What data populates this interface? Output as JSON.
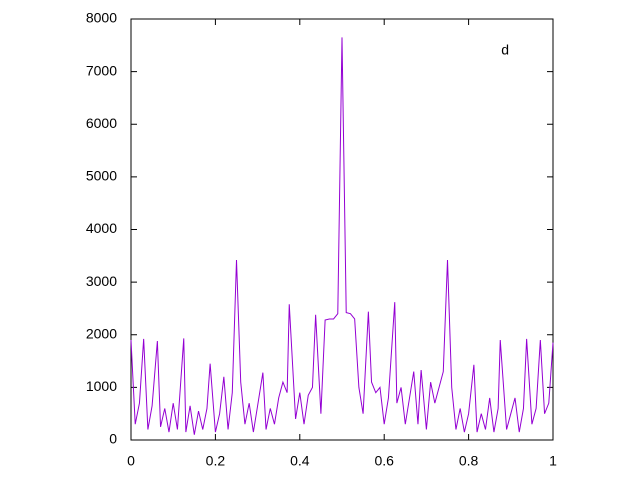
{
  "chart_data": {
    "type": "line",
    "x": [
      0,
      0.01,
      0.02,
      0.03,
      0.04,
      0.05,
      0.0625,
      0.07,
      0.08,
      0.09,
      0.1,
      0.11,
      0.125,
      0.13,
      0.14,
      0.15,
      0.16,
      0.17,
      0.18,
      0.1875,
      0.2,
      0.21,
      0.22,
      0.23,
      0.24,
      0.25,
      0.26,
      0.27,
      0.28,
      0.29,
      0.3,
      0.3125,
      0.32,
      0.33,
      0.34,
      0.35,
      0.36,
      0.37,
      0.375,
      0.39,
      0.4,
      0.41,
      0.42,
      0.43,
      0.4375,
      0.45,
      0.46,
      0.47,
      0.48,
      0.49,
      0.5,
      0.51,
      0.52,
      0.53,
      0.54,
      0.55,
      0.5625,
      0.57,
      0.58,
      0.59,
      0.6,
      0.61,
      0.625,
      0.63,
      0.64,
      0.65,
      0.66,
      0.67,
      0.68,
      0.6875,
      0.7,
      0.71,
      0.72,
      0.73,
      0.74,
      0.75,
      0.76,
      0.77,
      0.78,
      0.79,
      0.8,
      0.8125,
      0.82,
      0.83,
      0.84,
      0.85,
      0.86,
      0.87,
      0.875,
      0.89,
      0.9,
      0.91,
      0.92,
      0.93,
      0.9375,
      0.95,
      0.96,
      0.97,
      0.98,
      0.99,
      1
    ],
    "series": [
      {
        "name": "d",
        "color": "#9400d3",
        "values": [
          1900,
          300,
          700,
          1920,
          200,
          650,
          1880,
          250,
          600,
          150,
          700,
          200,
          1930,
          150,
          650,
          100,
          550,
          200,
          600,
          1450,
          150,
          500,
          1200,
          200,
          900,
          3420,
          1100,
          300,
          700,
          150,
          650,
          1280,
          200,
          600,
          300,
          800,
          1100,
          900,
          2580,
          400,
          900,
          300,
          850,
          1000,
          2380,
          500,
          2280,
          2300,
          2300,
          2400,
          7650,
          2420,
          2400,
          2300,
          1000,
          500,
          2440,
          1100,
          900,
          1000,
          300,
          800,
          2620,
          700,
          1000,
          300,
          800,
          1300,
          300,
          1330,
          200,
          1100,
          700,
          1000,
          1300,
          3420,
          1000,
          200,
          600,
          150,
          500,
          1430,
          150,
          500,
          200,
          800,
          150,
          600,
          1900,
          200,
          500,
          800,
          150,
          600,
          1920,
          300,
          600,
          1900,
          500,
          700,
          1850
        ]
      }
    ],
    "xlim": [
      0,
      1
    ],
    "xticks": [
      0,
      0.2,
      0.4,
      0.6,
      0.8,
      1
    ],
    "ylim": [
      0,
      8000
    ],
    "yticks": [
      0,
      1000,
      2000,
      3000,
      4000,
      5000,
      6000,
      7000,
      8000
    ],
    "legend": "top-right"
  }
}
